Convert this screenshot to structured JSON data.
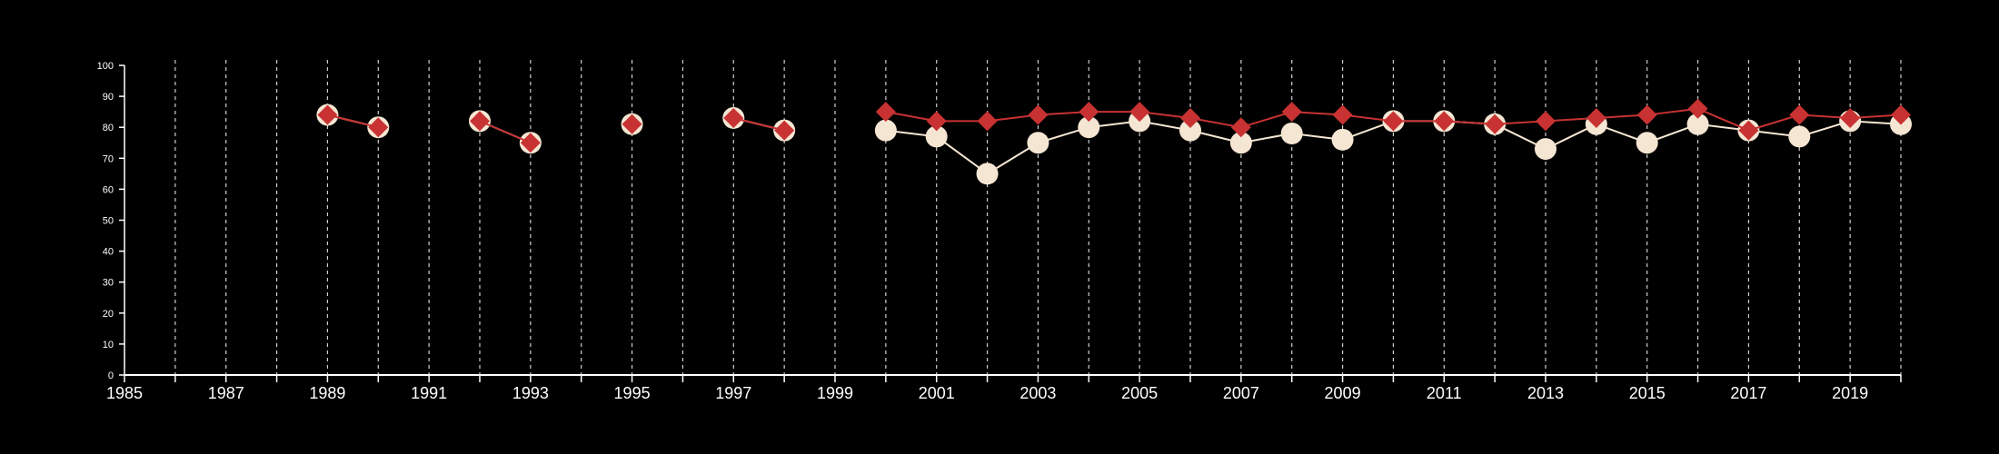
{
  "chart_data": {
    "type": "line",
    "title": "",
    "xlabel": "",
    "ylabel": "",
    "xlim": [
      1985,
      2020
    ],
    "ylim": [
      0,
      100
    ],
    "y_ticks": [
      0,
      10,
      20,
      30,
      40,
      50,
      60,
      70,
      80,
      90,
      100
    ],
    "x_tick_labels": [
      1985,
      1987,
      1989,
      1991,
      1993,
      1995,
      1997,
      1999,
      2001,
      2003,
      2005,
      2007,
      2009,
      2011,
      2013,
      2015,
      2017,
      2019
    ],
    "grid": "vertical dashed lines at every year",
    "legend": "none",
    "series": [
      {
        "marker": "circle",
        "color": "#f5e6d3",
        "x": [
          1989,
          1990,
          1992,
          1993,
          1995,
          1997,
          1998,
          2000,
          2001,
          2002,
          2003,
          2004,
          2005,
          2006,
          2007,
          2008,
          2009,
          2010,
          2011,
          2012,
          2013,
          2014,
          2015,
          2016,
          2017,
          2018,
          2019,
          2020
        ],
        "values": [
          84,
          80,
          82,
          75,
          81,
          83,
          79,
          79,
          77,
          65,
          75,
          80,
          82,
          79,
          75,
          78,
          76,
          82,
          82,
          81,
          73,
          81,
          75,
          81,
          79,
          77,
          82,
          81
        ]
      },
      {
        "marker": "diamond",
        "color": "#c83232",
        "x": [
          1989,
          1990,
          1992,
          1993,
          1995,
          1997,
          1998,
          2000,
          2001,
          2002,
          2003,
          2004,
          2005,
          2006,
          2007,
          2008,
          2009,
          2010,
          2011,
          2012,
          2013,
          2014,
          2015,
          2016,
          2017,
          2018,
          2019,
          2020
        ],
        "values": [
          84,
          80,
          82,
          75,
          81,
          83,
          79,
          85,
          82,
          82,
          84,
          85,
          85,
          83,
          80,
          85,
          84,
          82,
          82,
          81,
          82,
          83,
          84,
          86,
          79,
          84,
          83,
          84
        ]
      }
    ]
  }
}
